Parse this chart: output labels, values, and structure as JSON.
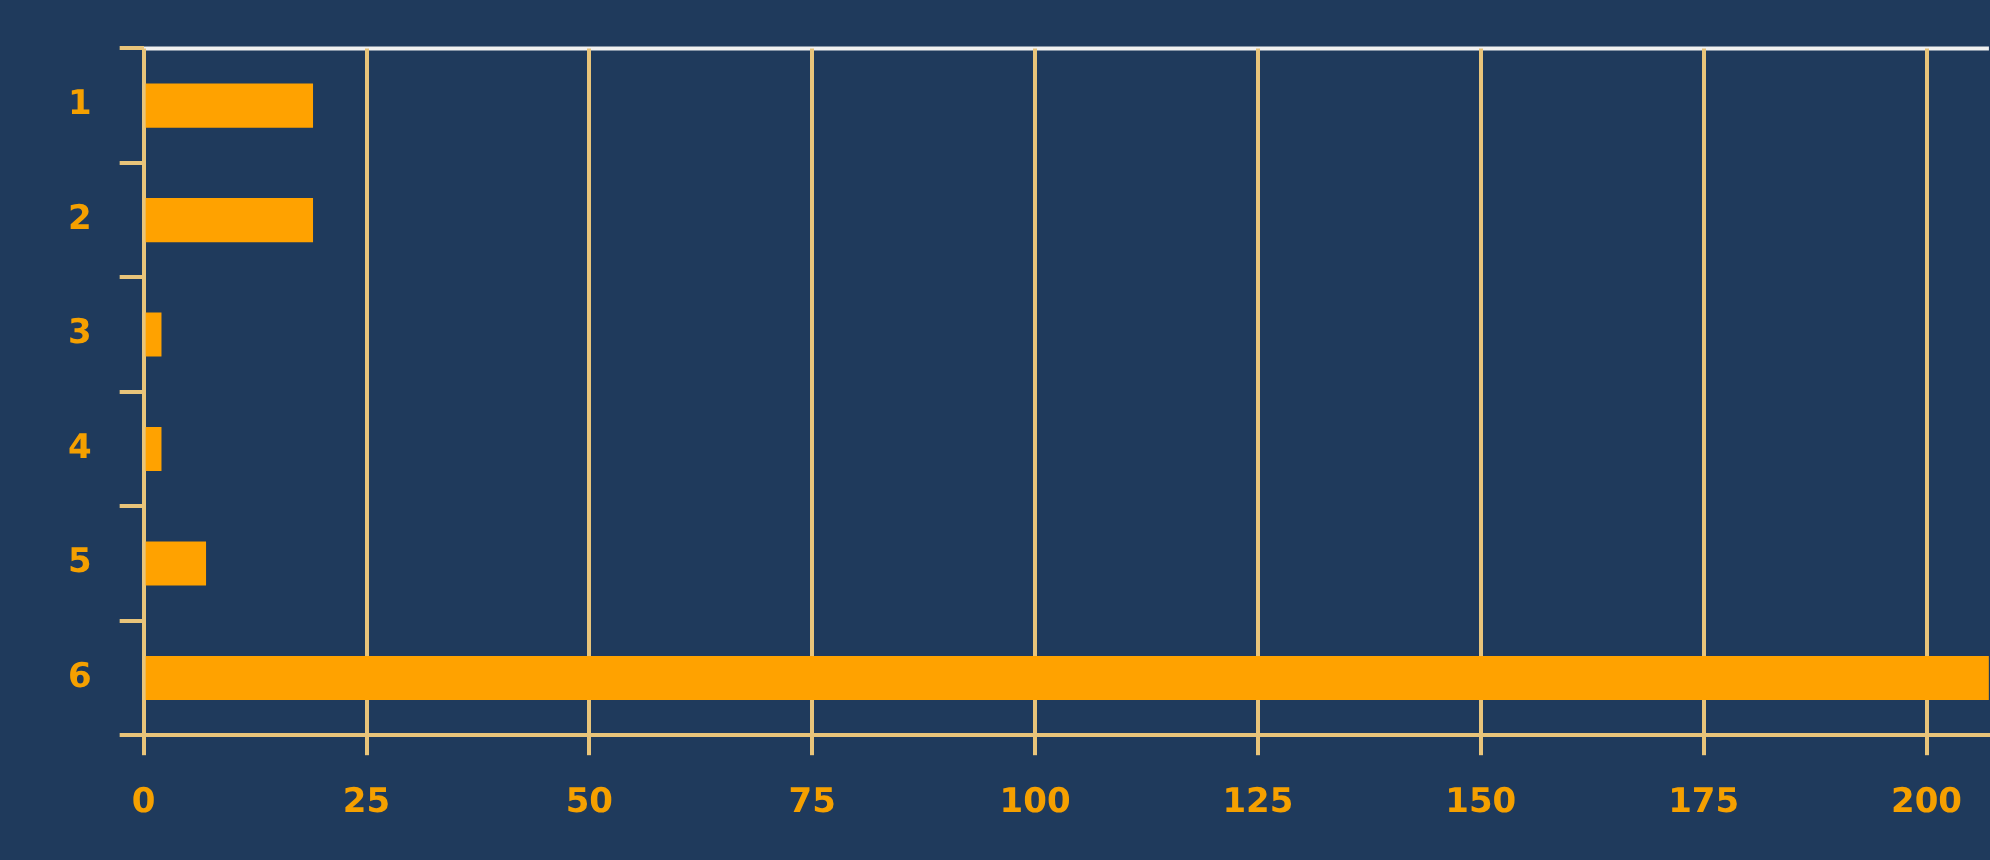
{
  "chart_data": {
    "type": "bar",
    "orientation": "horizontal",
    "categories": [
      "1",
      "2",
      "3",
      "4",
      "5",
      "6"
    ],
    "values": [
      19,
      19,
      2,
      2,
      7,
      207
    ],
    "color": "#ffa200",
    "xlim": [
      0,
      207
    ],
    "xticks": [
      0,
      25,
      50,
      75,
      100,
      125,
      150,
      175,
      200
    ],
    "grid": "x"
  }
}
